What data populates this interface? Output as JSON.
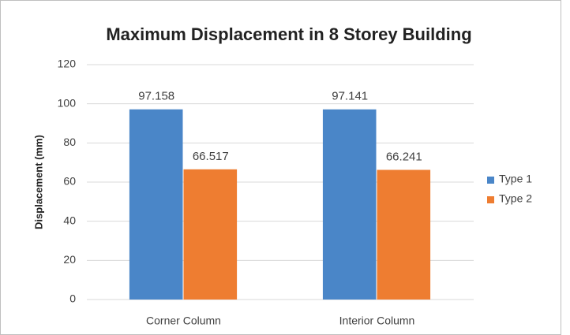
{
  "chart_data": {
    "type": "bar",
    "title": "Maximum Displacement in 8 Storey Building",
    "y_label": "Displacement (mm)",
    "categories": [
      "Corner Column",
      "Interior Column"
    ],
    "series": [
      {
        "name": "Type 1",
        "color": "#4a86c8",
        "values": [
          97.158,
          97.141
        ]
      },
      {
        "name": "Type 2",
        "color": "#ee7d31",
        "values": [
          66.517,
          66.241
        ]
      }
    ],
    "ylim": [
      0,
      120
    ],
    "yticks": [
      0,
      20,
      40,
      60,
      80,
      100,
      120
    ],
    "grid": true,
    "legend": "right"
  }
}
